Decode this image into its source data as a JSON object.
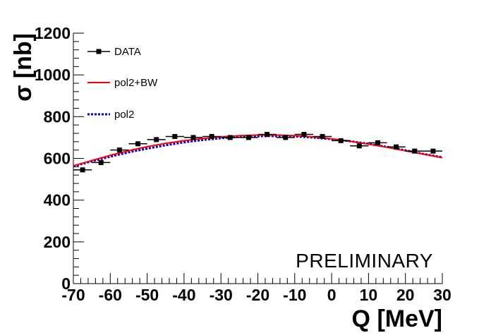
{
  "chart_data": {
    "type": "scatter",
    "xlabel": "Q [MeV]",
    "ylabel": "σ [nb]",
    "xlim": [
      -70,
      30
    ],
    "ylim": [
      0,
      1200
    ],
    "x_ticks": [
      -70,
      -60,
      -50,
      -40,
      -30,
      -20,
      -10,
      0,
      10,
      20,
      30
    ],
    "y_ticks": [
      0,
      200,
      400,
      600,
      800,
      1000,
      1200
    ],
    "annotation": "PRELIMINARY",
    "legend": [
      {
        "name": "DATA",
        "style": "marker"
      },
      {
        "name": "pol2+BW",
        "style": "line",
        "color": "#ff0000"
      },
      {
        "name": "pol2",
        "style": "dotted",
        "color": "#0000cc"
      }
    ],
    "series": [
      {
        "name": "DATA",
        "x": [
          -67.5,
          -62.5,
          -57.5,
          -52.5,
          -47.5,
          -42.5,
          -37.5,
          -32.5,
          -27.5,
          -22.5,
          -17.5,
          -12.5,
          -7.5,
          -2.5,
          2.5,
          7.5,
          12.5,
          17.5,
          22.5,
          27.5
        ],
        "y": [
          545,
          580,
          640,
          670,
          690,
          705,
          700,
          705,
          700,
          700,
          715,
          700,
          715,
          705,
          685,
          660,
          675,
          655,
          635,
          635
        ],
        "xerr": 2.5
      },
      {
        "name": "pol2+BW",
        "color": "#ff0000",
        "x": [
          -70,
          -65,
          -60,
          -55,
          -50,
          -45,
          -40,
          -35,
          -30,
          -25,
          -20,
          -15,
          -10,
          -5,
          0,
          5,
          10,
          15,
          20,
          25,
          30
        ],
        "y": [
          565,
          590,
          615,
          637,
          656,
          672,
          685,
          695,
          703,
          709,
          712,
          712,
          709,
          703,
          694,
          682,
          668,
          653,
          636,
          620,
          603
        ]
      },
      {
        "name": "pol2",
        "color": "#0000cc",
        "x": [
          -70,
          -65,
          -60,
          -55,
          -50,
          -45,
          -40,
          -35,
          -30,
          -25,
          -20,
          -15,
          -10,
          -5,
          0,
          5,
          10,
          15,
          20,
          25,
          30
        ],
        "y": [
          562,
          586,
          608,
          629,
          647,
          663,
          677,
          688,
          697,
          703,
          706,
          707,
          705,
          700,
          692,
          682,
          670,
          655,
          639,
          621,
          605
        ]
      }
    ]
  }
}
